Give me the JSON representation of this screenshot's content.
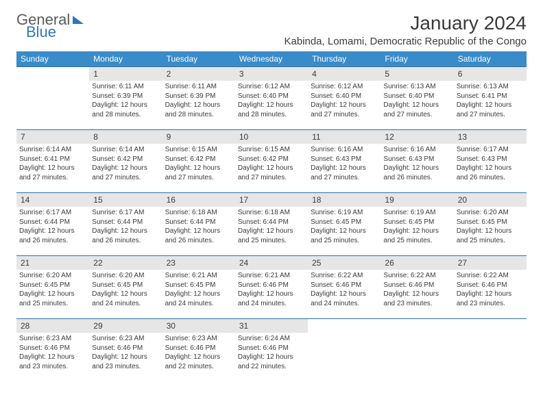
{
  "logo": {
    "line1": "General",
    "line2": "Blue",
    "brand_color": "#2e77b8",
    "text_color": "#5a5a5a"
  },
  "header": {
    "title": "January 2024",
    "subtitle": "Kabinda, Lomami, Democratic Republic of the Congo"
  },
  "calendar": {
    "day_headers": [
      "Sunday",
      "Monday",
      "Tuesday",
      "Wednesday",
      "Thursday",
      "Friday",
      "Saturday"
    ],
    "header_bg": "#3a8bc9",
    "header_fg": "#ffffff",
    "daynum_bg": "#e6e6e6",
    "border_color": "#2e6ea8",
    "text_color": "#3a3a3a",
    "weeks": [
      [
        {
          "empty": true
        },
        {
          "day": "1",
          "sunrise": "Sunrise: 6:11 AM",
          "sunset": "Sunset: 6:39 PM",
          "daylight": "Daylight: 12 hours and 28 minutes."
        },
        {
          "day": "2",
          "sunrise": "Sunrise: 6:11 AM",
          "sunset": "Sunset: 6:39 PM",
          "daylight": "Daylight: 12 hours and 28 minutes."
        },
        {
          "day": "3",
          "sunrise": "Sunrise: 6:12 AM",
          "sunset": "Sunset: 6:40 PM",
          "daylight": "Daylight: 12 hours and 28 minutes."
        },
        {
          "day": "4",
          "sunrise": "Sunrise: 6:12 AM",
          "sunset": "Sunset: 6:40 PM",
          "daylight": "Daylight: 12 hours and 27 minutes."
        },
        {
          "day": "5",
          "sunrise": "Sunrise: 6:13 AM",
          "sunset": "Sunset: 6:40 PM",
          "daylight": "Daylight: 12 hours and 27 minutes."
        },
        {
          "day": "6",
          "sunrise": "Sunrise: 6:13 AM",
          "sunset": "Sunset: 6:41 PM",
          "daylight": "Daylight: 12 hours and 27 minutes."
        }
      ],
      [
        {
          "day": "7",
          "sunrise": "Sunrise: 6:14 AM",
          "sunset": "Sunset: 6:41 PM",
          "daylight": "Daylight: 12 hours and 27 minutes."
        },
        {
          "day": "8",
          "sunrise": "Sunrise: 6:14 AM",
          "sunset": "Sunset: 6:42 PM",
          "daylight": "Daylight: 12 hours and 27 minutes."
        },
        {
          "day": "9",
          "sunrise": "Sunrise: 6:15 AM",
          "sunset": "Sunset: 6:42 PM",
          "daylight": "Daylight: 12 hours and 27 minutes."
        },
        {
          "day": "10",
          "sunrise": "Sunrise: 6:15 AM",
          "sunset": "Sunset: 6:42 PM",
          "daylight": "Daylight: 12 hours and 27 minutes."
        },
        {
          "day": "11",
          "sunrise": "Sunrise: 6:16 AM",
          "sunset": "Sunset: 6:43 PM",
          "daylight": "Daylight: 12 hours and 27 minutes."
        },
        {
          "day": "12",
          "sunrise": "Sunrise: 6:16 AM",
          "sunset": "Sunset: 6:43 PM",
          "daylight": "Daylight: 12 hours and 26 minutes."
        },
        {
          "day": "13",
          "sunrise": "Sunrise: 6:17 AM",
          "sunset": "Sunset: 6:43 PM",
          "daylight": "Daylight: 12 hours and 26 minutes."
        }
      ],
      [
        {
          "day": "14",
          "sunrise": "Sunrise: 6:17 AM",
          "sunset": "Sunset: 6:44 PM",
          "daylight": "Daylight: 12 hours and 26 minutes."
        },
        {
          "day": "15",
          "sunrise": "Sunrise: 6:17 AM",
          "sunset": "Sunset: 6:44 PM",
          "daylight": "Daylight: 12 hours and 26 minutes."
        },
        {
          "day": "16",
          "sunrise": "Sunrise: 6:18 AM",
          "sunset": "Sunset: 6:44 PM",
          "daylight": "Daylight: 12 hours and 26 minutes."
        },
        {
          "day": "17",
          "sunrise": "Sunrise: 6:18 AM",
          "sunset": "Sunset: 6:44 PM",
          "daylight": "Daylight: 12 hours and 25 minutes."
        },
        {
          "day": "18",
          "sunrise": "Sunrise: 6:19 AM",
          "sunset": "Sunset: 6:45 PM",
          "daylight": "Daylight: 12 hours and 25 minutes."
        },
        {
          "day": "19",
          "sunrise": "Sunrise: 6:19 AM",
          "sunset": "Sunset: 6:45 PM",
          "daylight": "Daylight: 12 hours and 25 minutes."
        },
        {
          "day": "20",
          "sunrise": "Sunrise: 6:20 AM",
          "sunset": "Sunset: 6:45 PM",
          "daylight": "Daylight: 12 hours and 25 minutes."
        }
      ],
      [
        {
          "day": "21",
          "sunrise": "Sunrise: 6:20 AM",
          "sunset": "Sunset: 6:45 PM",
          "daylight": "Daylight: 12 hours and 25 minutes."
        },
        {
          "day": "22",
          "sunrise": "Sunrise: 6:20 AM",
          "sunset": "Sunset: 6:45 PM",
          "daylight": "Daylight: 12 hours and 24 minutes."
        },
        {
          "day": "23",
          "sunrise": "Sunrise: 6:21 AM",
          "sunset": "Sunset: 6:45 PM",
          "daylight": "Daylight: 12 hours and 24 minutes."
        },
        {
          "day": "24",
          "sunrise": "Sunrise: 6:21 AM",
          "sunset": "Sunset: 6:46 PM",
          "daylight": "Daylight: 12 hours and 24 minutes."
        },
        {
          "day": "25",
          "sunrise": "Sunrise: 6:22 AM",
          "sunset": "Sunset: 6:46 PM",
          "daylight": "Daylight: 12 hours and 24 minutes."
        },
        {
          "day": "26",
          "sunrise": "Sunrise: 6:22 AM",
          "sunset": "Sunset: 6:46 PM",
          "daylight": "Daylight: 12 hours and 23 minutes."
        },
        {
          "day": "27",
          "sunrise": "Sunrise: 6:22 AM",
          "sunset": "Sunset: 6:46 PM",
          "daylight": "Daylight: 12 hours and 23 minutes."
        }
      ],
      [
        {
          "day": "28",
          "sunrise": "Sunrise: 6:23 AM",
          "sunset": "Sunset: 6:46 PM",
          "daylight": "Daylight: 12 hours and 23 minutes."
        },
        {
          "day": "29",
          "sunrise": "Sunrise: 6:23 AM",
          "sunset": "Sunset: 6:46 PM",
          "daylight": "Daylight: 12 hours and 23 minutes."
        },
        {
          "day": "30",
          "sunrise": "Sunrise: 6:23 AM",
          "sunset": "Sunset: 6:46 PM",
          "daylight": "Daylight: 12 hours and 22 minutes."
        },
        {
          "day": "31",
          "sunrise": "Sunrise: 6:24 AM",
          "sunset": "Sunset: 6:46 PM",
          "daylight": "Daylight: 12 hours and 22 minutes."
        },
        {
          "empty": true
        },
        {
          "empty": true
        },
        {
          "empty": true
        }
      ]
    ]
  }
}
